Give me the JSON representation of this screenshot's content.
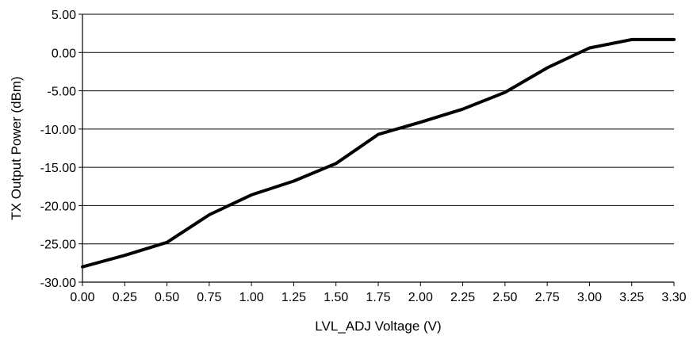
{
  "chart_data": {
    "type": "line",
    "title": "",
    "xlabel": "LVL_ADJ Voltage (V)",
    "ylabel": "TX Output Power (dBm)",
    "xlim": [
      0,
      3.3
    ],
    "ylim": [
      -30,
      5
    ],
    "x_ticks": [
      "0.00",
      "0.25",
      "0.50",
      "0.75",
      "1.00",
      "1.25",
      "1.50",
      "1.75",
      "2.00",
      "2.25",
      "2.50",
      "2.75",
      "3.00",
      "3.25",
      "3.30"
    ],
    "y_ticks": [
      "5.00",
      "0.00",
      "-5.00",
      "-10.00",
      "-15.00",
      "-20.00",
      "-25.00",
      "-30.00"
    ],
    "grid": true,
    "legend": "none",
    "series": [
      {
        "color": "#000000",
        "x": [
          0.0,
          0.25,
          0.5,
          0.75,
          1.0,
          1.25,
          1.5,
          1.75,
          2.0,
          2.25,
          2.5,
          2.75,
          3.0,
          3.25,
          3.3
        ],
        "y": [
          -28.0,
          -26.5,
          -24.8,
          -21.2,
          -18.6,
          -16.8,
          -14.5,
          -10.7,
          -9.1,
          -7.4,
          -5.2,
          -2.0,
          0.6,
          1.7,
          1.7
        ]
      }
    ]
  }
}
